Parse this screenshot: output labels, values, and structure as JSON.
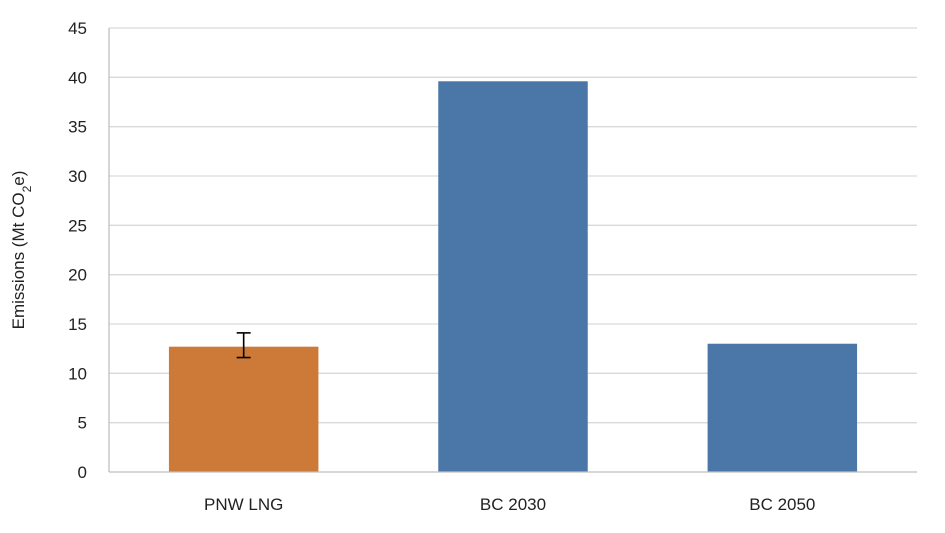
{
  "chart_data": {
    "type": "bar",
    "title": "",
    "xlabel": "",
    "ylabel": {
      "prefix": "Emissions (Mt CO",
      "subscript": "2",
      "suffix": "e)"
    },
    "categories": [
      "PNW LNG",
      "BC 2030",
      "BC 2050"
    ],
    "values": [
      12.7,
      39.6,
      13.0
    ],
    "error_bars": [
      {
        "category": "PNW LNG",
        "low": 11.6,
        "high": 14.1
      },
      null,
      null
    ],
    "colors": [
      "#cd7a38",
      "#4a76a8",
      "#4a76a8"
    ],
    "ylim": [
      0,
      45
    ],
    "yticks": [
      0,
      5,
      10,
      15,
      20,
      25,
      30,
      35,
      40,
      45
    ],
    "grid": true,
    "legend": "none"
  }
}
